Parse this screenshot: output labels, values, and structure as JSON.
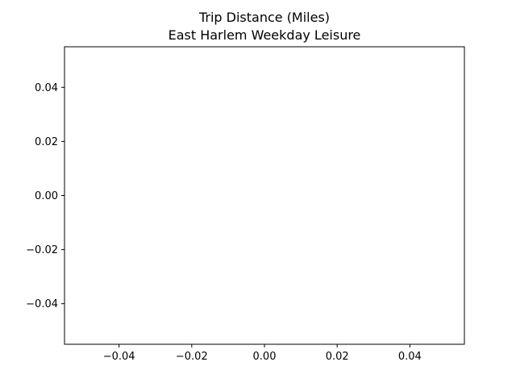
{
  "chart_data": {
    "type": "scatter",
    "title": "Trip Distance (Miles)",
    "subtitle": "East Harlem Weekday Leisure",
    "xlabel": "",
    "ylabel": "",
    "xlim": [
      -0.055,
      0.055
    ],
    "ylim": [
      -0.055,
      0.055
    ],
    "xticks": [
      -0.04,
      -0.02,
      0.0,
      0.02,
      0.04
    ],
    "yticks": [
      -0.04,
      -0.02,
      0.0,
      0.02,
      0.04
    ],
    "xtick_labels": [
      "−0.04",
      "−0.02",
      "0.00",
      "0.02",
      "0.04"
    ],
    "ytick_labels": [
      "−0.04",
      "−0.02",
      "0.00",
      "0.02",
      "0.04"
    ],
    "series": [],
    "grid": false,
    "legend": "none"
  }
}
